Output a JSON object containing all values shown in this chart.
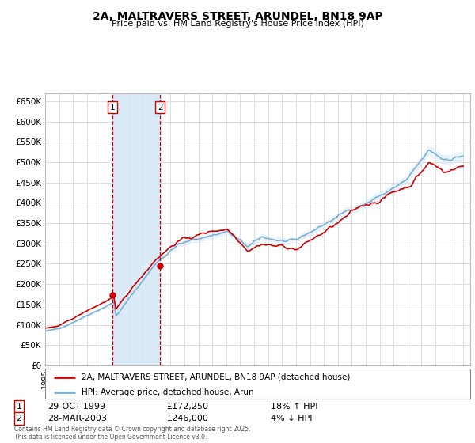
{
  "title": "2A, MALTRAVERS STREET, ARUNDEL, BN18 9AP",
  "subtitle": "Price paid vs. HM Land Registry's House Price Index (HPI)",
  "ylabel_ticks": [
    "£0",
    "£50K",
    "£100K",
    "£150K",
    "£200K",
    "£250K",
    "£300K",
    "£350K",
    "£400K",
    "£450K",
    "£500K",
    "£550K",
    "£600K",
    "£650K"
  ],
  "ytick_values": [
    0,
    50000,
    100000,
    150000,
    200000,
    250000,
    300000,
    350000,
    400000,
    450000,
    500000,
    550000,
    600000,
    650000
  ],
  "xlim_start": 1995.0,
  "xlim_end": 2025.5,
  "ylim_min": 0,
  "ylim_max": 670000,
  "sale1_date": "29-OCT-1999",
  "sale1_price": 172250,
  "sale1_hpi": "18% ↑ HPI",
  "sale1_label": "1",
  "sale1_x": 1999.83,
  "sale2_date": "28-MAR-2003",
  "sale2_price": 246000,
  "sale2_hpi": "4% ↓ HPI",
  "sale2_label": "2",
  "sale2_x": 2003.24,
  "red_line_color": "#cc0000",
  "blue_line_color": "#7ab0d4",
  "blue_fill_color": "#d6e8f5",
  "shade_between_sales_color": "#d6e8f5",
  "vline_color": "#cc0000",
  "grid_color": "#dddddd",
  "background_color": "#ffffff",
  "legend_label_red": "2A, MALTRAVERS STREET, ARUNDEL, BN18 9AP (detached house)",
  "legend_label_blue": "HPI: Average price, detached house, Arun",
  "footer": "Contains HM Land Registry data © Crown copyright and database right 2025.\nThis data is licensed under the Open Government Licence v3.0."
}
